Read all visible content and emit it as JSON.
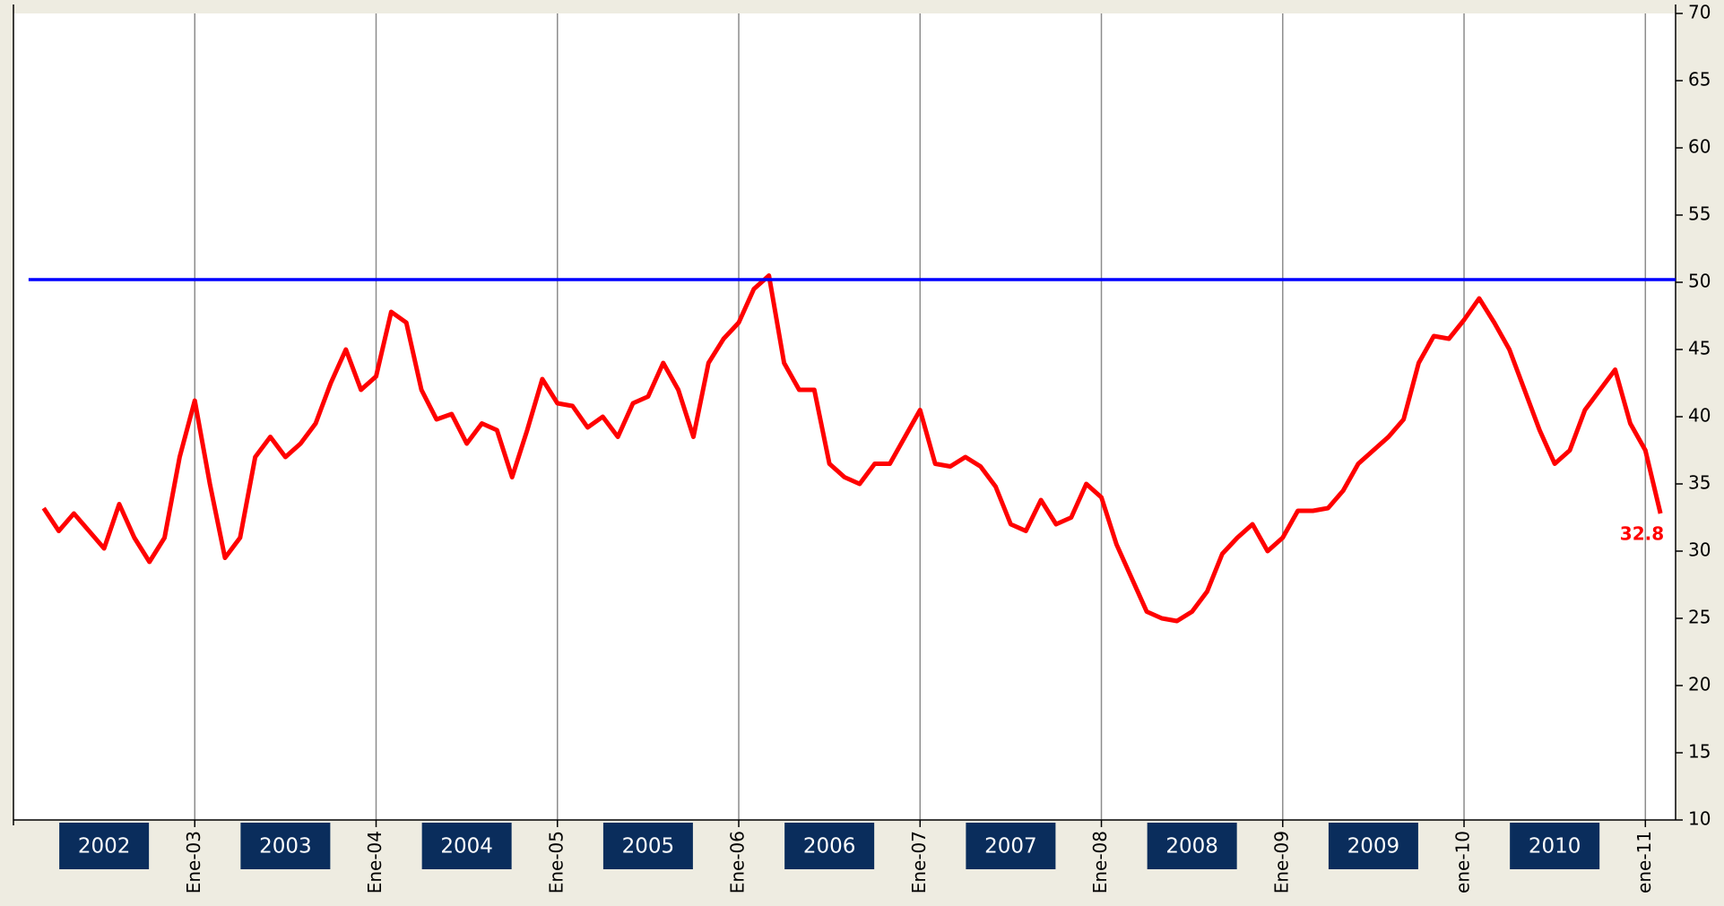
{
  "chart_data": {
    "type": "line",
    "x": [
      2,
      3,
      4,
      5,
      6,
      7,
      8,
      9,
      10,
      11,
      12,
      13,
      14,
      15,
      16,
      17,
      18,
      19,
      20,
      21,
      22,
      23,
      24,
      25,
      26,
      27,
      28,
      29,
      30,
      31,
      32,
      33,
      34,
      35,
      36,
      37,
      38,
      39,
      40,
      41,
      42,
      43,
      44,
      45,
      46,
      47,
      48,
      49,
      50,
      51,
      52,
      53,
      54,
      55,
      56,
      57,
      58,
      59,
      60,
      61,
      62,
      63,
      64,
      65,
      66,
      67,
      68,
      69,
      70,
      71,
      72,
      73,
      74,
      75,
      76,
      77,
      78,
      79,
      80,
      81,
      82,
      83,
      84,
      85,
      86,
      87,
      88,
      89,
      90,
      91,
      92,
      93,
      94,
      95,
      96,
      97,
      98,
      99,
      100,
      101,
      102,
      103,
      104,
      105,
      106,
      107,
      108,
      109
    ],
    "series": [
      {
        "color": "#ff0000",
        "values": [
          33.2,
          31.5,
          32.8,
          31.5,
          30.2,
          33.5,
          31,
          29.2,
          31,
          37,
          41.2,
          35,
          29.5,
          31,
          37,
          38.5,
          37,
          38,
          39.5,
          42.5,
          45,
          42,
          43,
          47.8,
          47,
          42,
          39.8,
          40.2,
          38,
          39.5,
          39,
          35.5,
          39,
          42.8,
          41,
          40.8,
          39.2,
          40,
          38.5,
          41,
          41.5,
          44,
          42,
          38.5,
          44,
          45.8,
          47,
          49.5,
          50.5,
          44,
          42,
          42,
          36.5,
          35.5,
          35,
          36.5,
          36.5,
          38.5,
          40.5,
          36.5,
          36.3,
          37,
          36.3,
          34.8,
          32,
          31.5,
          33.8,
          32,
          32.5,
          35,
          34,
          30.5,
          28,
          25.5,
          25,
          24.8,
          25.5,
          27,
          29.8,
          31,
          32,
          30,
          31,
          33,
          33,
          33.2,
          34.5,
          36.5,
          37.5,
          38.5,
          39.8,
          44,
          46,
          45.8,
          47.2,
          48.8,
          47,
          45,
          42,
          39,
          36.5,
          37.5,
          40.5,
          42,
          43.5,
          39.5,
          37.5,
          32.8
        ]
      },
      {
        "color": "#0000ff",
        "x": [
          1,
          110
        ],
        "values": [
          50.2,
          50.2
        ]
      }
    ],
    "xlim": [
      0,
      110
    ],
    "xticks": [
      {
        "value": 12,
        "label": "Ene-03"
      },
      {
        "value": 24,
        "label": "Ene-04"
      },
      {
        "value": 36,
        "label": "Ene-05"
      },
      {
        "value": 48,
        "label": "Ene-06"
      },
      {
        "value": 60,
        "label": "Ene-07"
      },
      {
        "value": 72,
        "label": "Ene-08"
      },
      {
        "value": 84,
        "label": "Ene-09"
      },
      {
        "value": 96,
        "label": "ene-10"
      },
      {
        "value": 108,
        "label": "ene-11"
      }
    ],
    "ylim": [
      10,
      70
    ],
    "yticks": [
      10,
      15,
      20,
      25,
      30,
      35,
      40,
      45,
      50,
      55,
      60,
      65,
      70
    ],
    "year_labels": [
      "2002",
      "2003",
      "2004",
      "2005",
      "2006",
      "2007",
      "2008",
      "2009",
      "2010"
    ],
    "grid": true
  }
}
